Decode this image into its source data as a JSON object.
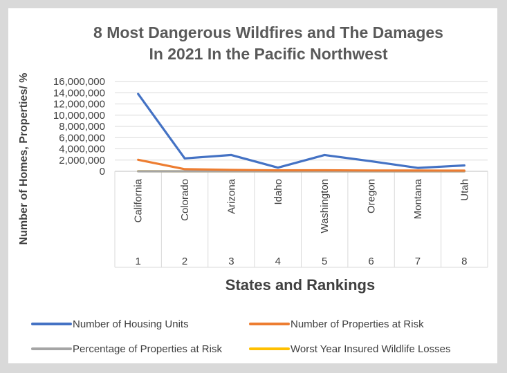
{
  "chart_data": {
    "type": "line",
    "title_lines": [
      "8 Most Dangerous Wildfires and The  Damages",
      "In 2021 In the Pacific Northwest"
    ],
    "xlabel": "States  and  Rankings",
    "ylabel": "Number of  Homes, Properties/ %",
    "categories": [
      {
        "state": "California",
        "rank": "1"
      },
      {
        "state": "Colorado",
        "rank": "2"
      },
      {
        "state": "Arizona",
        "rank": "3"
      },
      {
        "state": "Idaho",
        "rank": "4"
      },
      {
        "state": "Washington",
        "rank": "5"
      },
      {
        "state": "Oregon",
        "rank": "6"
      },
      {
        "state": "Montana",
        "rank": "7"
      },
      {
        "state": "Utah",
        "rank": "8"
      }
    ],
    "ylim": [
      0,
      16000000
    ],
    "yticks": [
      "0",
      "2,000,000",
      "4,000,000",
      "6,000,000",
      "8,000,000",
      "10,000,000",
      "12,000,000",
      "14,000,000",
      "16,000,000"
    ],
    "series": [
      {
        "name": "Number of Housing Units",
        "color": "#4472c4",
        "values": [
          13800000,
          2300000,
          2900000,
          650000,
          2900000,
          1800000,
          600000,
          1050000
        ]
      },
      {
        "name": "Number of Properties at Risk",
        "color": "#ed7d31",
        "values": [
          2050000,
          380000,
          250000,
          170000,
          180000,
          150000,
          130000,
          120000
        ]
      },
      {
        "name": "Percentage of Properties at Risk",
        "color": "#a5a5a5",
        "values": [
          15,
          17,
          9,
          26,
          6,
          9,
          29,
          11
        ]
      },
      {
        "name": "Worst Year Insured Wildlife Losses",
        "color": "#ffc000",
        "values": [
          18000,
          700,
          130,
          10,
          1000,
          300,
          150,
          80
        ]
      }
    ]
  }
}
